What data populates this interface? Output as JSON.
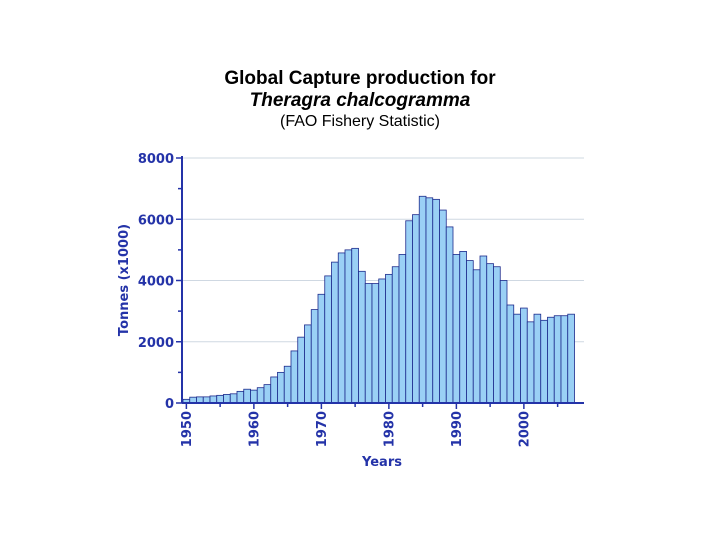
{
  "title": {
    "line1": "Global Capture production for",
    "line2": "Theragra chalcogramma",
    "line3": "(FAO Fishery Statistic)"
  },
  "colors": {
    "bar_fill": "#9ad0f5",
    "bar_stroke": "#1c2a8c",
    "axis": "#2433a8",
    "grid": "#cfd8e2",
    "text": "#2433a8"
  },
  "chart_data": {
    "type": "bar",
    "title": "Global Capture production for Theragra chalcogramma",
    "subtitle": "(FAO Fishery Statistic)",
    "xlabel": "Years",
    "ylabel": "Tonnes (x1000)",
    "ylim": [
      0,
      8000
    ],
    "yticks": [
      0,
      2000,
      4000,
      6000,
      8000
    ],
    "xticks": [
      1950,
      1960,
      1970,
      1980,
      1990,
      2000
    ],
    "grid": true,
    "categories": [
      1950,
      1951,
      1952,
      1953,
      1954,
      1955,
      1956,
      1957,
      1958,
      1959,
      1960,
      1961,
      1962,
      1963,
      1964,
      1965,
      1966,
      1967,
      1968,
      1969,
      1970,
      1971,
      1972,
      1973,
      1974,
      1975,
      1976,
      1977,
      1978,
      1979,
      1980,
      1981,
      1982,
      1983,
      1984,
      1985,
      1986,
      1987,
      1988,
      1989,
      1990,
      1991,
      1992,
      1993,
      1994,
      1995,
      1996,
      1997,
      1998,
      1999,
      2000,
      2001,
      2002,
      2003,
      2004,
      2005,
      2006,
      2007
    ],
    "values": [
      120,
      190,
      200,
      200,
      230,
      250,
      280,
      300,
      380,
      450,
      420,
      500,
      600,
      850,
      1000,
      1200,
      1700,
      2150,
      2550,
      3050,
      3550,
      4150,
      4600,
      4900,
      5000,
      5050,
      4300,
      3900,
      3900,
      4050,
      4200,
      4450,
      4850,
      5950,
      6150,
      6750,
      6700,
      6650,
      6300,
      5750,
      4850,
      4950,
      4650,
      4350,
      4800,
      4550,
      4450,
      4000,
      3200,
      2900,
      3100,
      2650,
      2900,
      2700,
      2800,
      2850,
      2850,
      2900
    ]
  }
}
